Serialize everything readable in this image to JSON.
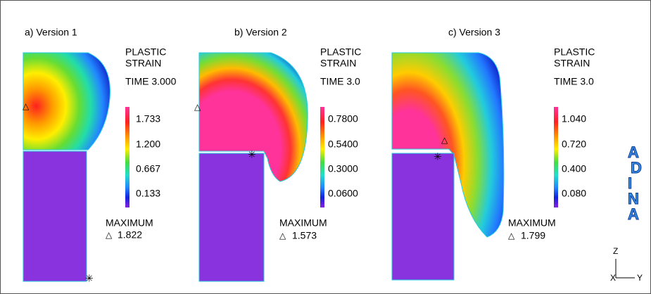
{
  "panels": [
    {
      "title": "a) Version 1",
      "legend_title": [
        "PLASTIC",
        "STRAIN"
      ],
      "time": "TIME 3.000",
      "levels": [
        "1.733",
        "1.200",
        "0.667",
        "0.133"
      ],
      "maximum_label": "MAXIMUM",
      "maximum_value": "1.822"
    },
    {
      "title": "b) Version 2",
      "legend_title": [
        "PLASTIC",
        "STRAIN"
      ],
      "time": "TIME 3.0",
      "levels": [
        "0.7800",
        "0.5400",
        "0.3000",
        "0.0600"
      ],
      "maximum_label": "MAXIMUM",
      "maximum_value": "1.573"
    },
    {
      "title": "c) Version 3",
      "legend_title": [
        "PLASTIC",
        "STRAIN"
      ],
      "time": "TIME 3.0",
      "levels": [
        "1.040",
        "0.720",
        "0.400",
        "0.080"
      ],
      "maximum_label": "MAXIMUM",
      "maximum_value": "1.799"
    }
  ],
  "logo": [
    "A",
    "D",
    "I",
    "N",
    "A"
  ],
  "axes": {
    "z": "Z",
    "x": "X",
    "y": "Y"
  }
}
